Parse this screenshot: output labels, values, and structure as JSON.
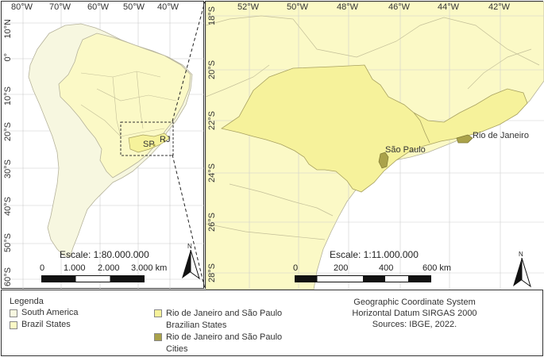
{
  "left_map": {
    "lon_labels": [
      "80°W",
      "70°W",
      "60°W",
      "50°W",
      "40°W"
    ],
    "lat_labels": [
      "10°N",
      "0°",
      "10°S",
      "20°S",
      "30°S",
      "40°S",
      "50°S",
      "60°S"
    ],
    "scale_text": "Escale: 1:80.000.000",
    "scale_ticks": [
      "0",
      "1.000",
      "2.000",
      "3.000 km"
    ],
    "city_labels": [
      "SP",
      "RJ"
    ],
    "north_label": "N"
  },
  "right_map": {
    "lon_labels": [
      "52°W",
      "50°W",
      "48°W",
      "46°W",
      "44°W",
      "42°W"
    ],
    "lat_labels": [
      "18°S",
      "20°S",
      "22°S",
      "24°S",
      "26°S",
      "28°S"
    ],
    "scale_text": "Escale: 1:11.000.000",
    "scale_ticks": [
      "0",
      "200",
      "400",
      "600 km"
    ],
    "city_labels": [
      "São Paulo",
      "Rio de Janeiro"
    ],
    "north_label": "N"
  },
  "legend": {
    "title": "Legenda",
    "items": [
      {
        "label": "South America",
        "color": "#f7f7e0"
      },
      {
        "label": "Brazil States",
        "color": "#fbf9c6"
      },
      {
        "label": "Rio de Janeiro and São Paulo Brazilian States",
        "color": "#f6f29b"
      },
      {
        "label": "Rio de Janeiro and São Paulo Cities",
        "color": "#aaa24a"
      }
    ]
  },
  "info": {
    "line1": "Geographic Coordinate System",
    "line2": "Horizontal Datum SIRGAS 2000",
    "line3": "Sources: IBGE, 2022."
  },
  "colors": {
    "ocean": "#ffffff",
    "south_america": "#f7f7e0",
    "brazil": "#fbf9c6",
    "states": "#f6f29b",
    "cities": "#aaa24a",
    "border": "#b5b29a",
    "grid": "#c8c8c8"
  }
}
